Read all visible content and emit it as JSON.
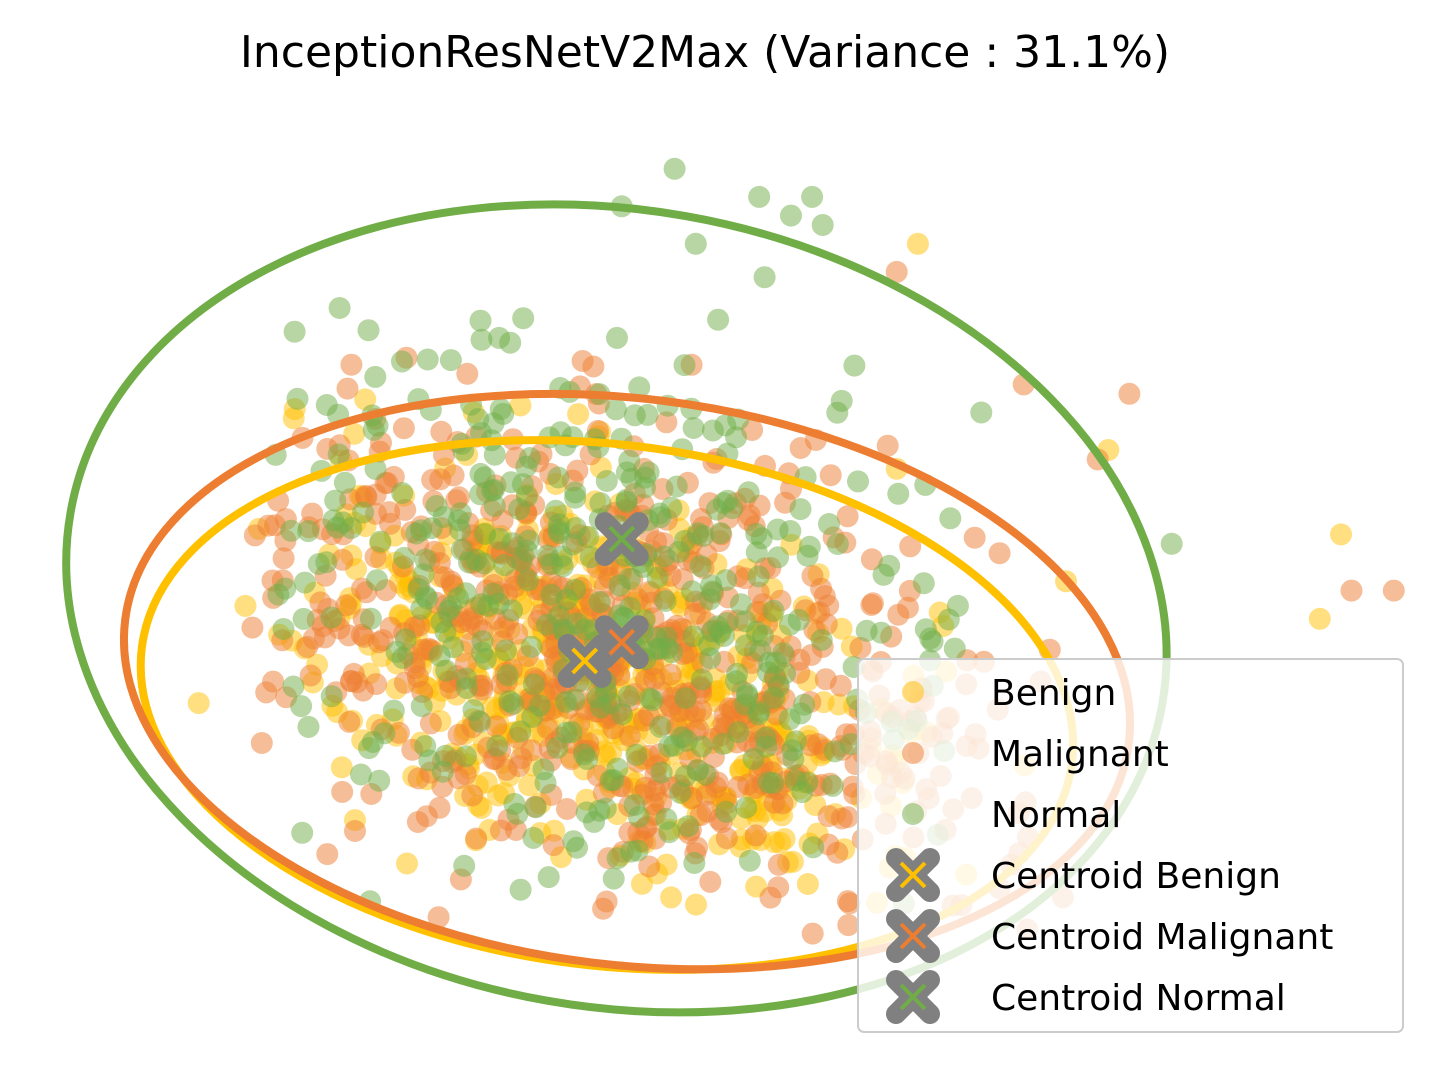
{
  "chart_data": {
    "type": "scatter",
    "title": "InceptionResNetV2Max (Variance : 31.1%)",
    "xlabel": "",
    "ylabel": "",
    "axes_visible": false,
    "grid": false,
    "legend_position": "lower right",
    "xlim": [
      -5.5,
      7.5
    ],
    "ylim": [
      -5.2,
      4.4
    ],
    "series": [
      {
        "name": "Benign",
        "kind": "points",
        "color": "#FFC000",
        "points": [
          [
            2.8,
            3.4
          ],
          [
            6.8,
            0.3
          ],
          [
            6.6,
            -0.6
          ],
          [
            4.2,
            -0.2
          ],
          [
            4.6,
            1.2
          ],
          [
            2.6,
            1.0
          ],
          [
            -4.0,
            -1.5
          ],
          [
            -1.4,
            1.6
          ],
          [
            1.3,
            -2.1
          ]
        ],
        "cloud": {
          "center": [
            -0.2,
            -1.2
          ],
          "n": 560,
          "sx": 1.05,
          "sy": 0.75,
          "rho": -0.45,
          "spread": [
            -3.6,
            3.9,
            -3.9,
            1.9
          ]
        }
      },
      {
        "name": "Malignant",
        "kind": "points",
        "color": "#ED7D31",
        "points": [
          [
            4.8,
            1.8
          ],
          [
            7.3,
            -0.3
          ],
          [
            6.9,
            -0.3
          ],
          [
            4.5,
            1.1
          ],
          [
            2.6,
            3.1
          ],
          [
            3.8,
            1.9
          ]
        ],
        "cloud": {
          "center": [
            0.0,
            -1.0
          ],
          "n": 700,
          "sx": 1.2,
          "sy": 0.85,
          "rho": -0.4,
          "spread": [
            -3.5,
            4.2,
            -4.0,
            2.4
          ]
        }
      },
      {
        "name": "Normal",
        "kind": "points",
        "color": "#70AD47",
        "points": [
          [
            1.8,
            3.9
          ],
          [
            1.9,
            3.6
          ],
          [
            1.6,
            3.7
          ],
          [
            0.5,
            4.2
          ],
          [
            1.3,
            3.9
          ],
          [
            0.0,
            3.8
          ],
          [
            0.7,
            3.4
          ],
          [
            2.2,
            2.1
          ],
          [
            5.2,
            0.2
          ],
          [
            3.4,
            1.6
          ]
        ],
        "cloud": {
          "center": [
            -0.3,
            -0.5
          ],
          "n": 480,
          "sx": 1.3,
          "sy": 1.0,
          "rho": -0.3,
          "spread": [
            -3.4,
            3.4,
            -3.7,
            3.2
          ]
        }
      },
      {
        "name": "Centroid Benign",
        "kind": "centroid",
        "color": "#FFC000",
        "x": -0.35,
        "y": -1.05
      },
      {
        "name": "Centroid Malignant",
        "kind": "centroid",
        "color": "#ED7D31",
        "x": 0.0,
        "y": -0.85
      },
      {
        "name": "Centroid Normal",
        "kind": "centroid",
        "color": "#70AD47",
        "x": 0.0,
        "y": 0.25
      }
    ],
    "ellipses": [
      {
        "series": "Benign",
        "color": "#FFC000",
        "cx": -0.14,
        "cy": -1.52,
        "rx": 4.43,
        "ry": 2.78,
        "angle_deg": -7
      },
      {
        "series": "Malignant",
        "color": "#ED7D31",
        "cx": 0.05,
        "cy": -1.27,
        "rx": 4.78,
        "ry": 3.02,
        "angle_deg": -7
      },
      {
        "series": "Normal",
        "color": "#70AD47",
        "cx": -0.05,
        "cy": -0.49,
        "rx": 5.24,
        "ry": 4.25,
        "angle_deg": -10
      }
    ]
  }
}
